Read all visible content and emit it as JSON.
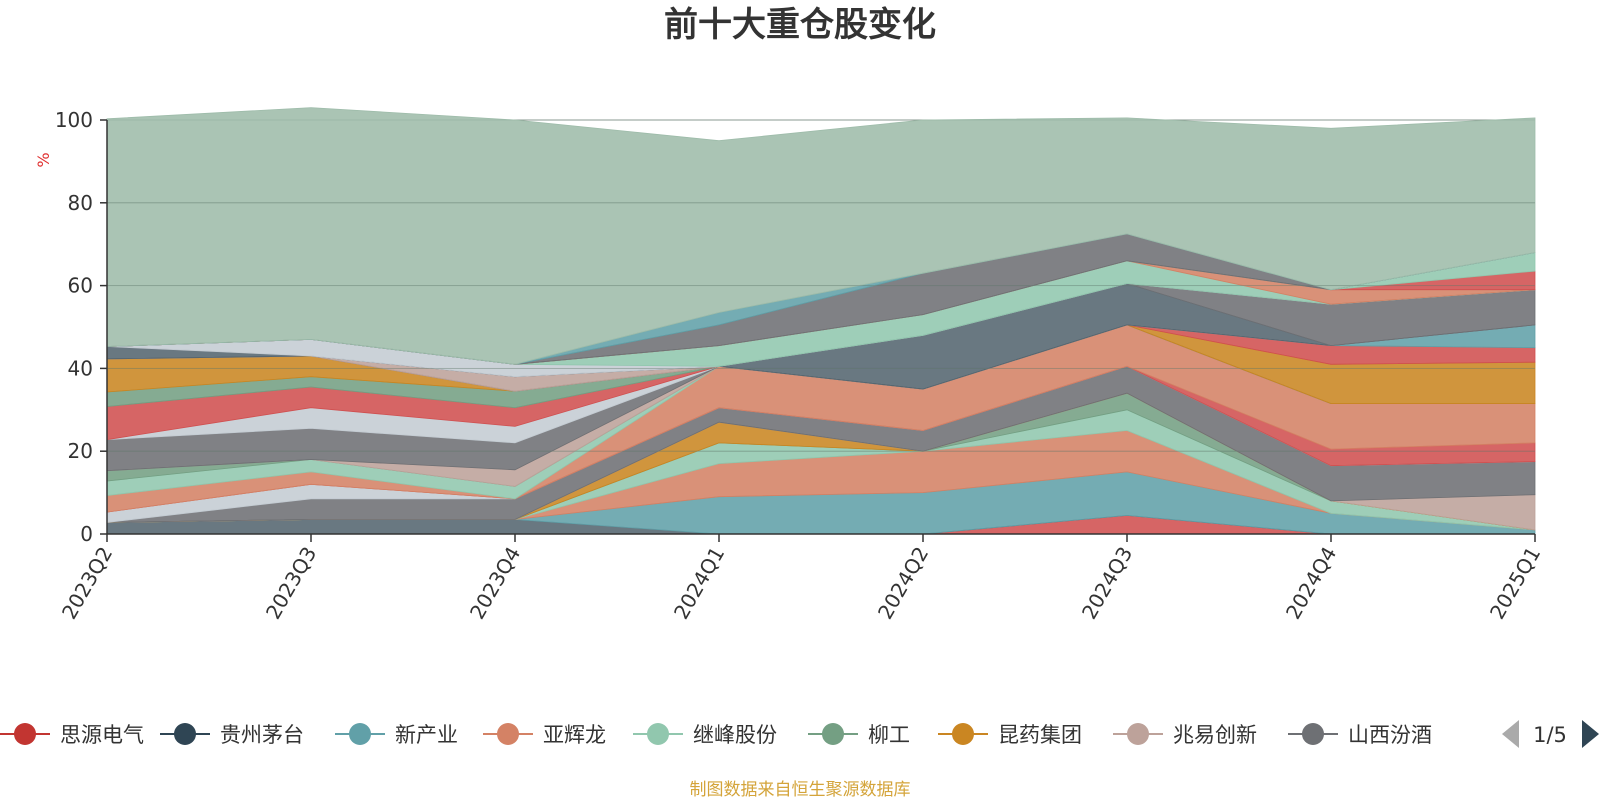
{
  "chart_data": {
    "type": "area",
    "stacked": true,
    "title": "前十大重仓股变化",
    "ylabel": "%",
    "ylim": [
      0,
      100
    ],
    "yticks": [
      0,
      20,
      40,
      60,
      80,
      100
    ],
    "grid": true,
    "categories": [
      "2023Q2",
      "2023Q3",
      "2023Q4",
      "2024Q1",
      "2024Q2",
      "2024Q3",
      "2024Q4",
      "2025Q1"
    ],
    "colors": {
      "red": "#d05050",
      "navy": "#2f4554",
      "teal": "#61a0a8",
      "salmon": "#d48265",
      "mint": "#91c7ae",
      "sage": "#749f83",
      "gold": "#ca8622",
      "mauve": "#bda29a",
      "gray": "#6e7074",
      "blue": "#546570",
      "silver": "#c4ccd3",
      "bg": "#9ebcaa"
    },
    "series": [
      {
        "name": "思源电气",
        "color": "#d05050",
        "values": [
          0,
          0,
          0,
          0,
          0,
          4.5,
          0,
          0
        ]
      },
      {
        "name": "贵州茅台",
        "color": "#546570",
        "values": [
          2.8,
          3.5,
          3.5,
          0,
          0,
          0,
          0,
          0
        ]
      },
      {
        "name": "新产业",
        "color": "#61a0a8",
        "values": [
          0,
          0,
          0,
          9,
          10,
          10.5,
          5,
          1
        ]
      },
      {
        "name": "亚辉龙",
        "color": "#d48265",
        "values": [
          0,
          0,
          0,
          8,
          10,
          10,
          0,
          0
        ]
      },
      {
        "name": "继峰股份",
        "color": "#91c7ae",
        "values": [
          0,
          0,
          0,
          5,
          0,
          5,
          3,
          0
        ]
      },
      {
        "name": "柳工",
        "color": "#749f83",
        "values": [
          0,
          0,
          0,
          0,
          0,
          4,
          0,
          0
        ]
      },
      {
        "name": "昆药集团",
        "color": "#ca8622",
        "values": [
          0,
          0,
          0,
          5,
          0,
          0,
          0,
          0
        ]
      },
      {
        "name": "兆易创新",
        "color": "#bda29a",
        "values": [
          0,
          0,
          0,
          0,
          0,
          0,
          0,
          8.5
        ]
      },
      {
        "name": "山西汾酒",
        "color": "#6e7074",
        "values": [
          0,
          5,
          5,
          3.5,
          5,
          6.5,
          8.5,
          8
        ]
      },
      {
        "name": "",
        "color": "#c4ccd3",
        "values": [
          2.5,
          3.5,
          0,
          0,
          0,
          0,
          0,
          0
        ]
      },
      {
        "name": "",
        "color": "#d05050",
        "values": [
          0,
          0,
          0,
          0,
          0,
          0,
          4,
          4.5
        ]
      },
      {
        "name": "",
        "color": "#d48265",
        "values": [
          4,
          3,
          0,
          10,
          10,
          10,
          11,
          9.5
        ]
      },
      {
        "name": "",
        "color": "#91c7ae",
        "values": [
          3.5,
          3,
          3,
          0,
          0,
          0,
          0,
          0
        ]
      },
      {
        "name": "",
        "color": "#749f83",
        "values": [
          2.5,
          0,
          0,
          0,
          0,
          0,
          0,
          0
        ]
      },
      {
        "name": "",
        "color": "#bda29a",
        "values": [
          0,
          0,
          4,
          0,
          0,
          0,
          0,
          0
        ]
      },
      {
        "name": "",
        "color": "#6e7074",
        "values": [
          7.5,
          7.5,
          6.5,
          0,
          0,
          0,
          0,
          0
        ]
      },
      {
        "name": "",
        "color": "#c4ccd3",
        "values": [
          0,
          5,
          4,
          0,
          0,
          0,
          0,
          0
        ]
      },
      {
        "name": "",
        "color": "#d05050",
        "values": [
          8,
          5,
          4.5,
          0,
          0,
          0,
          0,
          0
        ]
      },
      {
        "name": "",
        "color": "#749f83",
        "values": [
          3.5,
          2.5,
          4,
          0,
          0,
          0,
          0,
          0
        ]
      },
      {
        "name": "",
        "color": "#ca8622",
        "values": [
          8,
          5,
          0,
          0,
          0,
          0,
          9.5,
          10
        ]
      },
      {
        "name": "",
        "color": "#d05050",
        "values": [
          0,
          0,
          0,
          0,
          0,
          0,
          4.5,
          3.5
        ]
      },
      {
        "name": "",
        "color": "#61a0a8",
        "values": [
          0,
          0,
          0,
          0,
          0,
          0,
          0,
          5.5
        ]
      },
      {
        "name": "",
        "color": "#bda29a",
        "values": [
          0,
          0,
          3.5,
          0,
          0,
          0,
          0,
          0
        ]
      },
      {
        "name": "",
        "color": "#546570",
        "values": [
          3,
          0,
          0,
          0,
          13,
          10,
          0,
          0
        ]
      },
      {
        "name": "",
        "color": "#6e7074",
        "values": [
          0,
          0,
          0,
          0,
          0,
          0,
          10,
          8.5
        ]
      },
      {
        "name": "",
        "color": "#c4ccd3",
        "values": [
          0,
          4,
          3,
          0,
          0,
          0,
          0,
          0
        ]
      },
      {
        "name": "",
        "color": "#91c7ae",
        "values": [
          0,
          0,
          0,
          5,
          5,
          5.5,
          0,
          0
        ]
      },
      {
        "name": "",
        "color": "#d48265",
        "values": [
          0,
          0,
          0,
          0,
          0,
          0,
          3.5,
          0
        ]
      },
      {
        "name": "",
        "color": "#d05050",
        "values": [
          0,
          0,
          0,
          0,
          0,
          0,
          0,
          4.5
        ]
      },
      {
        "name": "",
        "color": "#91c7ae",
        "values": [
          0,
          0,
          0,
          0,
          0,
          0,
          0,
          4.5
        ]
      },
      {
        "name": "",
        "color": "#6e7074",
        "values": [
          0,
          0,
          0,
          5,
          10,
          6.5,
          0,
          0
        ]
      },
      {
        "name": "",
        "color": "#61a0a8",
        "values": [
          0,
          0,
          0,
          3,
          0,
          0,
          0,
          0
        ]
      },
      {
        "name": "",
        "color": "#9ebcaa",
        "values": [
          55,
          56,
          59,
          41.5,
          37,
          28,
          39,
          32.5
        ]
      }
    ],
    "legend": {
      "position": "bottom",
      "page_indicator": "1/5",
      "items": [
        {
          "name": "思源电气",
          "color": "#c23531"
        },
        {
          "name": "贵州茅台",
          "color": "#2f4554"
        },
        {
          "name": "新产业",
          "color": "#61a0a8"
        },
        {
          "name": "亚辉龙",
          "color": "#d48265"
        },
        {
          "name": "继峰股份",
          "color": "#91c7ae"
        },
        {
          "name": "柳工",
          "color": "#749f83"
        },
        {
          "name": "昆药集团",
          "color": "#ca8622"
        },
        {
          "name": "兆易创新",
          "color": "#bda29a"
        },
        {
          "name": "山西汾酒",
          "color": "#6e7074"
        }
      ]
    },
    "source": "制图数据来自恒生聚源数据库"
  }
}
